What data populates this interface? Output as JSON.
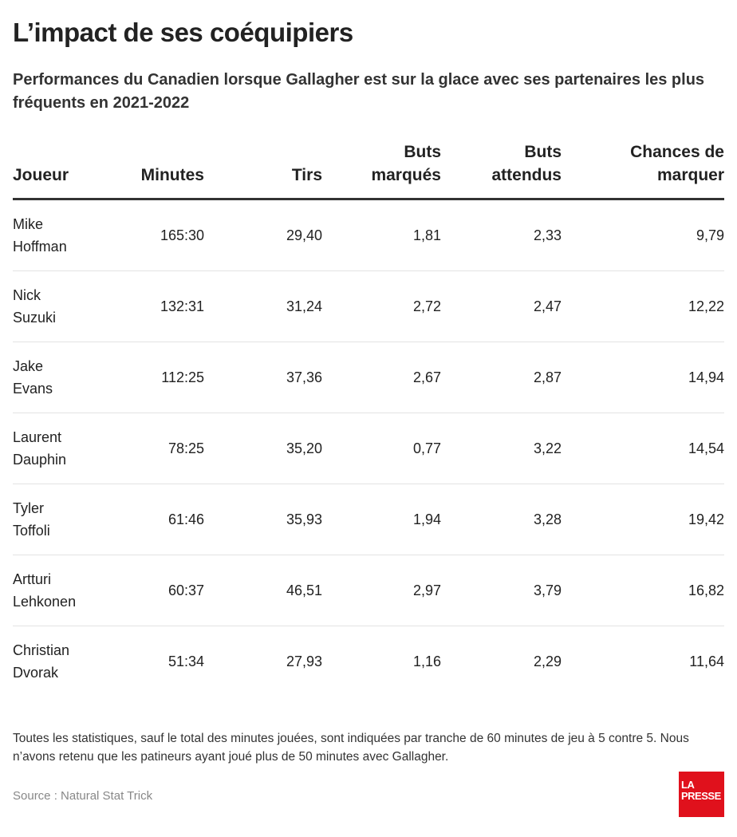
{
  "title": "L’impact de ses coéquipiers",
  "subtitle": "Performances du Canadien lorsque Gallagher est sur la glace avec ses partenaires les plus fréquents en 2021-2022",
  "chart_data": {
    "type": "table",
    "columns": [
      "Joueur",
      "Minutes",
      "Tirs",
      "Buts marqués",
      "Buts attendus",
      "Chances de marquer"
    ],
    "header_lines": [
      [
        "",
        "Joueur"
      ],
      [
        "",
        "Minutes"
      ],
      [
        "",
        "Tirs"
      ],
      [
        "Buts",
        "marqués"
      ],
      [
        "Buts",
        "attendus"
      ],
      [
        "Chances de",
        "marquer"
      ]
    ],
    "rows": [
      [
        "Mike\nHoffman",
        "165:30",
        "29,40",
        "1,81",
        "2,33",
        "9,79"
      ],
      [
        "Nick\nSuzuki",
        "132:31",
        "31,24",
        "2,72",
        "2,47",
        "12,22"
      ],
      [
        "Jake\nEvans",
        "112:25",
        "37,36",
        "2,67",
        "2,87",
        "14,94"
      ],
      [
        "Laurent\nDauphin",
        "78:25",
        "35,20",
        "0,77",
        "3,22",
        "14,54"
      ],
      [
        "Tyler\nToffoli",
        "61:46",
        "35,93",
        "1,94",
        "3,28",
        "19,42"
      ],
      [
        "Artturi\nLehkonen",
        "60:37",
        "46,51",
        "2,97",
        "3,79",
        "16,82"
      ],
      [
        "Christian\nDvorak",
        "51:34",
        "27,93",
        "1,16",
        "2,29",
        "11,64"
      ]
    ]
  },
  "note": "Toutes les statistiques, sauf le total des minutes jouées, sont indiquées par tranche de 60 minutes de jeu à 5 contre 5. Nous n’avons retenu que les patineurs ayant joué plus de 50 minutes avec Gallagher.",
  "source": "Source : Natural Stat Trick",
  "logo": {
    "line1": "LA",
    "line2": "PRESSE",
    "color": "#e0111c"
  }
}
